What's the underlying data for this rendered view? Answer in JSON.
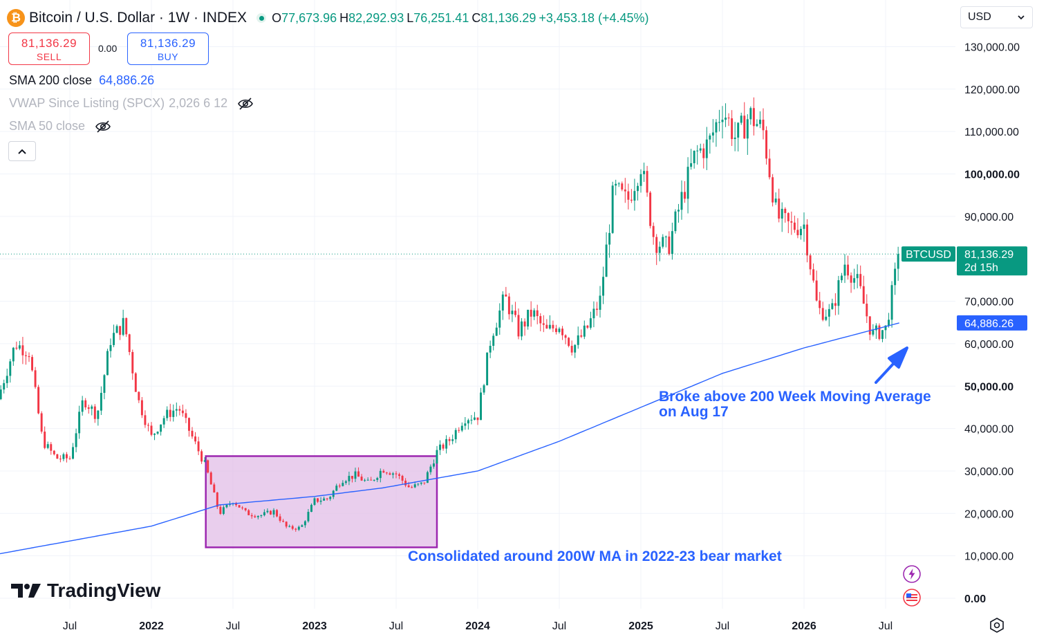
{
  "header": {
    "symbol_icon": "bitcoin-icon",
    "icon_glyph": "₿",
    "title": "Bitcoin / U.S. Dollar · 1W · INDEX",
    "open_label": "O",
    "open": "77,673.96",
    "high_label": "H",
    "high": "82,292.93",
    "low_label": "L",
    "low": "76,251.41",
    "close_label": "C",
    "close": "81,136.29",
    "change": "+3,453.18 (+4.45%)"
  },
  "trade": {
    "sell_price": "81,136.29",
    "sell_label": "SELL",
    "spread": "0.00",
    "buy_price": "81,136.29",
    "buy_label": "BUY"
  },
  "indicators": [
    {
      "name": "SMA 200 close",
      "value": "64,886.26",
      "visible": true
    },
    {
      "name": "VWAP Since Listing (SPCX)",
      "value": "2,026 6 12",
      "visible": false
    },
    {
      "name": "SMA 50 close",
      "value": "",
      "visible": false
    }
  ],
  "currency": "USD",
  "logo_text": "TradingView",
  "colors": {
    "up": "#089981",
    "down": "#f23645",
    "sma": "#2962ff",
    "annotation": "#2962ff",
    "box_fill": "#e1bee7",
    "box_border": "#9c27b0"
  },
  "chart_data": {
    "type": "candlestick",
    "symbol": "BTCUSD",
    "interval": "1W",
    "ylim": [
      0,
      130000
    ],
    "yticks": [
      "130,000.00",
      "120,000.00",
      "110,000.00",
      "100,000.00",
      "90,000.00",
      "80,000.00",
      "70,000.00",
      "60,000.00",
      "50,000.00",
      "40,000.00",
      "30,000.00",
      "20,000.00",
      "10,000.00",
      "0.00"
    ],
    "bold_ticks": [
      "100,000.00",
      "50,000.00",
      "0.00"
    ],
    "xticks": [
      {
        "label": "Jul",
        "date": "2021-07"
      },
      {
        "label": "2022",
        "date": "2022-01",
        "bold": true
      },
      {
        "label": "Jul",
        "date": "2022-07"
      },
      {
        "label": "2023",
        "date": "2023-01",
        "bold": true
      },
      {
        "label": "Jul",
        "date": "2023-07"
      },
      {
        "label": "2024",
        "date": "2024-01",
        "bold": true
      },
      {
        "label": "Jul",
        "date": "2024-07"
      },
      {
        "label": "2025",
        "date": "2025-01",
        "bold": true
      },
      {
        "label": "Jul",
        "date": "2025-07"
      },
      {
        "label": "2026",
        "date": "2026-01",
        "bold": true
      },
      {
        "label": "Jul",
        "date": "2026-07"
      }
    ],
    "last_price": {
      "value": 81136.29,
      "label": "BTCUSD",
      "price": "81,136.29",
      "countdown": "2d 15h"
    },
    "sma200_last": {
      "value": 64886.26,
      "label": "64,886.26"
    },
    "price_keypoints": [
      [
        "2021-01",
        40000
      ],
      [
        "2021-02",
        50000
      ],
      [
        "2021-03",
        60000
      ],
      [
        "2021-04",
        58000
      ],
      [
        "2021-05",
        37000
      ],
      [
        "2021-06",
        33000
      ],
      [
        "2021-07",
        33000
      ],
      [
        "2021-08",
        47000
      ],
      [
        "2021-09",
        43000
      ],
      [
        "2021-10",
        61000
      ],
      [
        "2021-11",
        65000
      ],
      [
        "2021-12",
        47000
      ],
      [
        "2022-01",
        38000
      ],
      [
        "2022-02",
        43000
      ],
      [
        "2022-03",
        45000
      ],
      [
        "2022-04",
        38000
      ],
      [
        "2022-05",
        31000
      ],
      [
        "2022-06",
        20000
      ],
      [
        "2022-07",
        23000
      ],
      [
        "2022-08",
        20000
      ],
      [
        "2022-09",
        19500
      ],
      [
        "2022-10",
        20500
      ],
      [
        "2022-11",
        16500
      ],
      [
        "2022-12",
        16600
      ],
      [
        "2023-01",
        23000
      ],
      [
        "2023-02",
        23500
      ],
      [
        "2023-03",
        28000
      ],
      [
        "2023-04",
        29000
      ],
      [
        "2023-05",
        27000
      ],
      [
        "2023-06",
        30500
      ],
      [
        "2023-07",
        29300
      ],
      [
        "2023-08",
        26000
      ],
      [
        "2023-09",
        27000
      ],
      [
        "2023-10",
        34500
      ],
      [
        "2023-11",
        37500
      ],
      [
        "2023-12",
        42500
      ],
      [
        "2024-01",
        43000
      ],
      [
        "2024-02",
        62000
      ],
      [
        "2024-03",
        71000
      ],
      [
        "2024-04",
        63000
      ],
      [
        "2024-05",
        67500
      ],
      [
        "2024-06",
        62700
      ],
      [
        "2024-07",
        64600
      ],
      [
        "2024-08",
        59000
      ],
      [
        "2024-09",
        63300
      ],
      [
        "2024-10",
        70200
      ],
      [
        "2024-11",
        96400
      ],
      [
        "2024-12",
        93400
      ],
      [
        "2025-01",
        102400
      ],
      [
        "2025-02",
        84300
      ],
      [
        "2025-03",
        82500
      ],
      [
        "2025-04",
        94200
      ],
      [
        "2025-05",
        104600
      ],
      [
        "2025-06",
        107100
      ],
      [
        "2025-07",
        115700
      ],
      [
        "2025-08",
        108200
      ],
      [
        "2025-09",
        114000
      ],
      [
        "2025-10",
        110000
      ],
      [
        "2025-11",
        90000
      ],
      [
        "2025-12",
        87500
      ],
      [
        "2026-01",
        88000
      ],
      [
        "2026-02",
        68000
      ],
      [
        "2026-03",
        67000
      ],
      [
        "2026-04",
        79000
      ],
      [
        "2026-05",
        74000
      ],
      [
        "2026-06",
        62000
      ],
      [
        "2026-07",
        63500
      ],
      [
        "2026-08",
        81136
      ]
    ],
    "sma200_keypoints": [
      [
        "2021-01",
        10000
      ],
      [
        "2022-01",
        17000
      ],
      [
        "2022-06",
        22000
      ],
      [
        "2023-01",
        24000
      ],
      [
        "2023-06",
        26000
      ],
      [
        "2024-01",
        30000
      ],
      [
        "2024-07",
        37000
      ],
      [
        "2025-01",
        45000
      ],
      [
        "2025-07",
        53000
      ],
      [
        "2026-01",
        59000
      ],
      [
        "2026-08",
        64886
      ]
    ],
    "annotations": [
      {
        "text": [
          "Broke above 200 Week Moving Average",
          "on Aug 17"
        ]
      },
      {
        "text": [
          "Consolidated around 200W MA in 2022-23 bear market"
        ]
      }
    ],
    "highlight_box": {
      "from": "2022-05",
      "to": "2023-10",
      "low": 12000,
      "high": 33500
    }
  }
}
